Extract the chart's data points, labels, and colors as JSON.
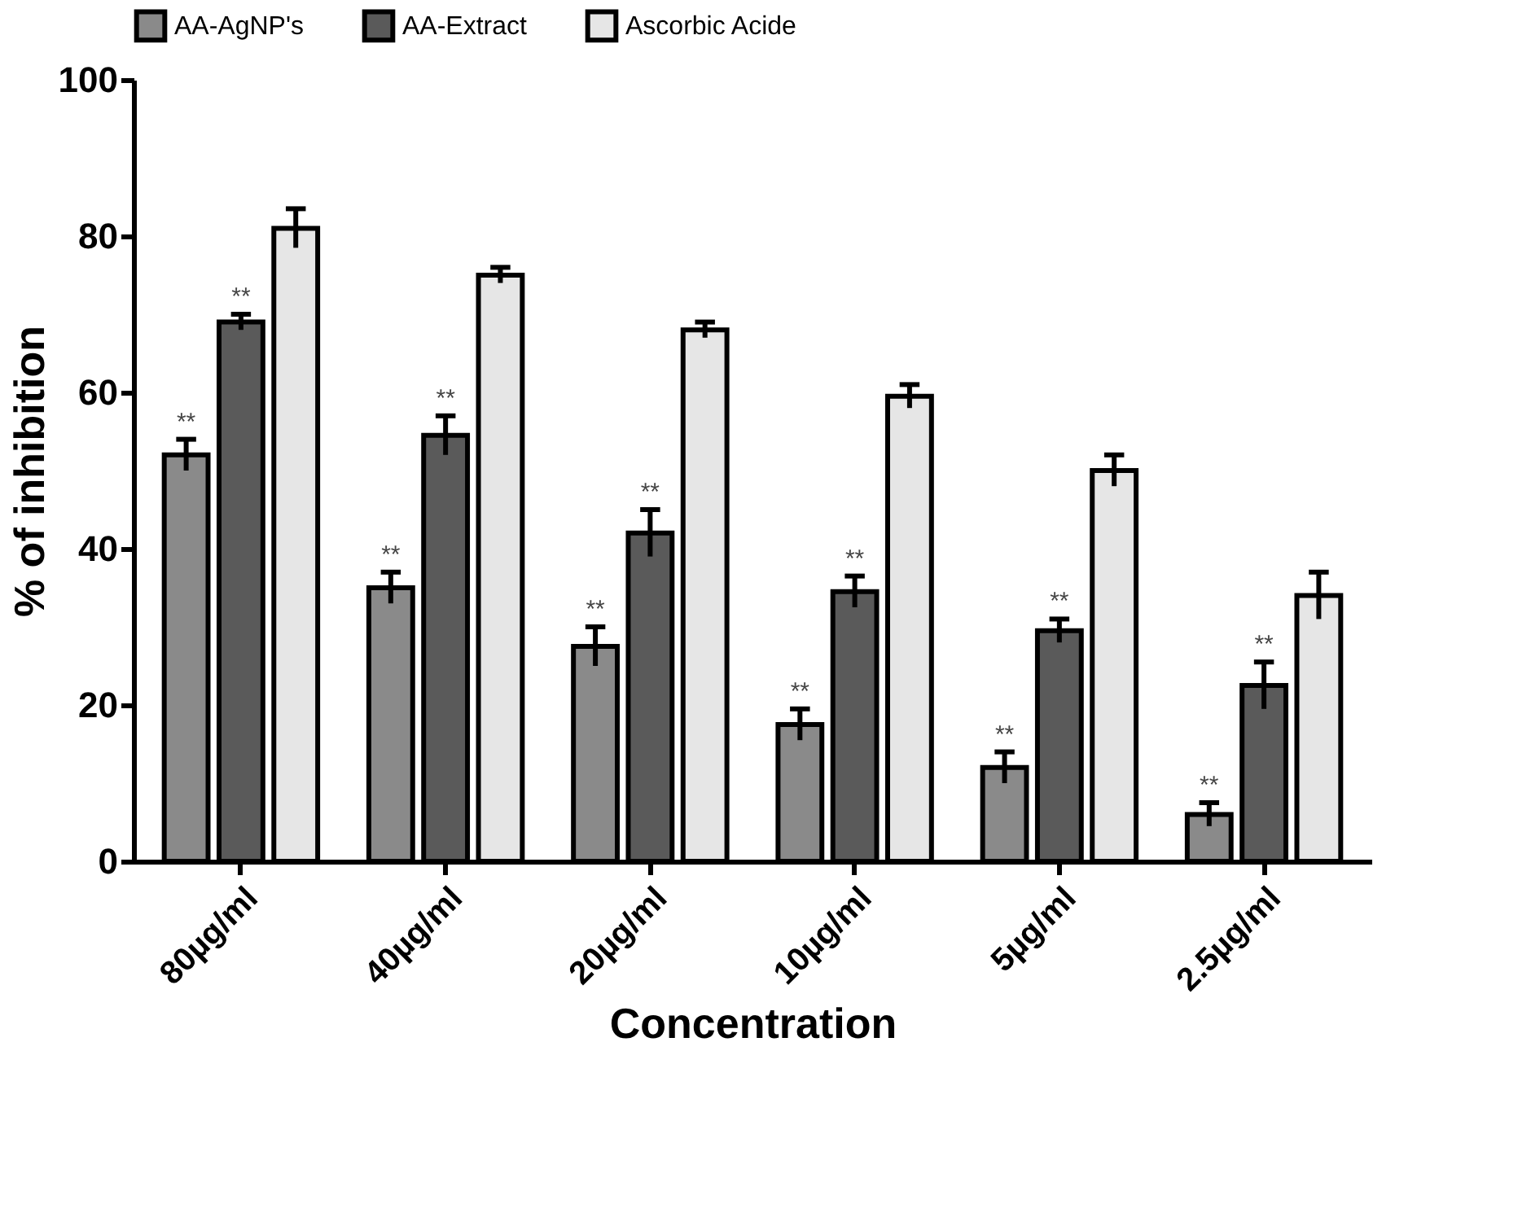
{
  "chart_data": {
    "type": "bar",
    "xlabel": "Concentration",
    "ylabel": "% of inhibition",
    "categories": [
      "80µg/ml",
      "40µg/ml",
      "20µg/ml",
      "10µg/ml",
      "5µg/ml",
      "2.5µg/ml"
    ],
    "series": [
      {
        "name": "AA-AgNP's",
        "color": "#8a8a8a",
        "values": [
          52,
          35,
          27.5,
          17.5,
          12,
          6
        ],
        "errors": [
          2,
          2,
          2.5,
          2,
          2,
          1.5
        ]
      },
      {
        "name": "AA-Extract",
        "color": "#5a5a5a",
        "values": [
          69,
          54.5,
          42,
          34.5,
          29.5,
          22.5
        ],
        "errors": [
          1,
          2.5,
          3,
          2,
          1.5,
          3
        ]
      },
      {
        "name": "Ascorbic Acide",
        "color": "#e6e6e6",
        "values": [
          81,
          75,
          68,
          59.5,
          50,
          34
        ],
        "errors": [
          2.5,
          1,
          1,
          1.5,
          2,
          3
        ]
      }
    ],
    "ylim": [
      0,
      100
    ],
    "yticks": [
      0,
      20,
      40,
      60,
      80,
      100
    ],
    "grid": false,
    "legend": "top",
    "annotations": [
      "**",
      "**",
      "**",
      "**",
      "**",
      "**",
      "**",
      "**",
      "**",
      "**",
      "**",
      "**"
    ]
  }
}
